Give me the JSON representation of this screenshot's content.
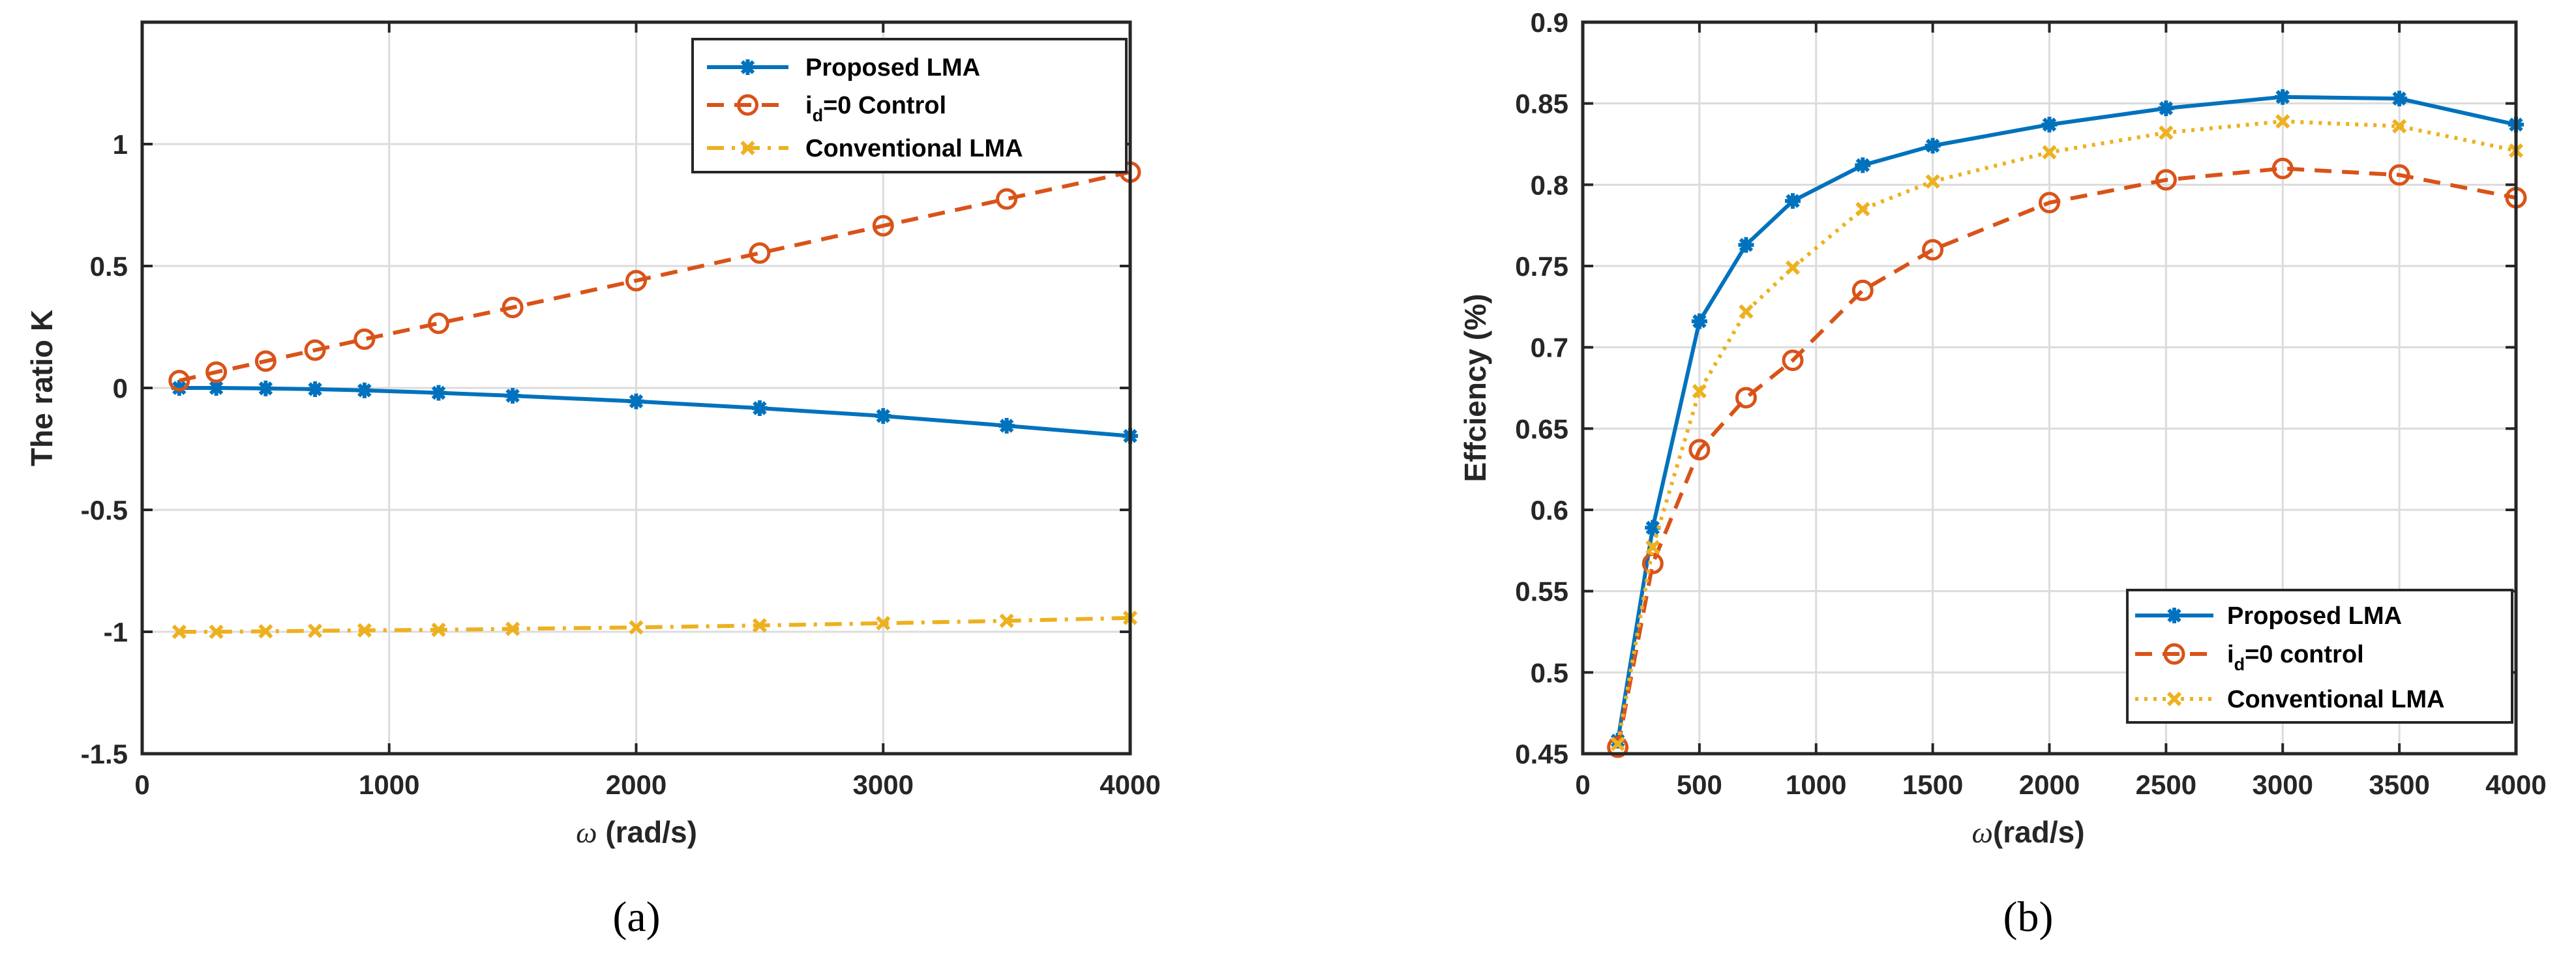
{
  "chart_data": [
    {
      "type": "line",
      "panel_label": "(a)",
      "xlabel_symbol": "ω",
      "xlabel": " (rad/s)",
      "ylabel": "The ratio K",
      "xlim": [
        0,
        4000
      ],
      "ylim": [
        -1.5,
        1.5
      ],
      "xticks": [
        0,
        1000,
        2000,
        3000,
        4000
      ],
      "yticks": [
        -1.5,
        -1,
        -0.5,
        0,
        0.5,
        1
      ],
      "xtick_labels": [
        "0",
        "1000",
        "2000",
        "3000",
        "4000"
      ],
      "ytick_labels": [
        "-1.5",
        "-1",
        "-0.5",
        "0",
        "0.5",
        "1"
      ],
      "grid": true,
      "legend_position": "top-right",
      "x": [
        150,
        300,
        500,
        700,
        900,
        1200,
        1500,
        2000,
        2500,
        3000,
        3500,
        4000
      ],
      "series": [
        {
          "name": "Proposed LMA",
          "legend": {
            "main": "Proposed LMA",
            "sub": "",
            "tail": ""
          },
          "color": "#0072BD",
          "style": "solid",
          "marker": "star",
          "values": [
            0,
            0,
            -0.002,
            -0.005,
            -0.01,
            -0.02,
            -0.032,
            -0.055,
            -0.083,
            -0.115,
            -0.155,
            -0.197
          ]
        },
        {
          "name": "id=0 Control",
          "legend": {
            "main": "i",
            "sub": "d",
            "tail": "=0 Control"
          },
          "color": "#D95319",
          "style": "dashed",
          "marker": "circle",
          "values": [
            0.03,
            0.065,
            0.11,
            0.155,
            0.2,
            0.265,
            0.33,
            0.44,
            0.553,
            0.665,
            0.775,
            0.885
          ]
        },
        {
          "name": "Conventional LMA",
          "legend": {
            "main": "Conventional LMA",
            "sub": "",
            "tail": ""
          },
          "color": "#EDB120",
          "style": "dashdot",
          "marker": "x",
          "values": [
            -1,
            -1,
            -0.998,
            -0.996,
            -0.994,
            -0.992,
            -0.988,
            -0.982,
            -0.974,
            -0.965,
            -0.955,
            -0.943
          ]
        }
      ]
    },
    {
      "type": "line",
      "panel_label": "(b)",
      "xlabel_symbol": "ω",
      "xlabel": "(rad/s)",
      "ylabel": "Effciency (%)",
      "xlim": [
        0,
        4000
      ],
      "ylim": [
        0.45,
        0.9
      ],
      "xticks": [
        0,
        500,
        1000,
        1500,
        2000,
        2500,
        3000,
        3500,
        4000
      ],
      "yticks": [
        0.45,
        0.5,
        0.55,
        0.6,
        0.65,
        0.7,
        0.75,
        0.8,
        0.85,
        0.9
      ],
      "xtick_labels": [
        "0",
        "500",
        "1000",
        "1500",
        "2000",
        "2500",
        "3000",
        "3500",
        "4000"
      ],
      "ytick_labels": [
        "0.45",
        "0.5",
        "0.55",
        "0.6",
        "0.65",
        "0.7",
        "0.75",
        "0.8",
        "0.85",
        "0.9"
      ],
      "grid": true,
      "legend_position": "bottom-right",
      "x": [
        150,
        300,
        500,
        700,
        900,
        1200,
        1500,
        2000,
        2500,
        3000,
        3500,
        4000
      ],
      "series": [
        {
          "name": "Proposed LMA",
          "legend": {
            "main": "Proposed LMA",
            "sub": "",
            "tail": ""
          },
          "color": "#0072BD",
          "style": "solid",
          "marker": "star",
          "values": [
            0.458,
            0.589,
            0.716,
            0.763,
            0.79,
            0.812,
            0.824,
            0.837,
            0.847,
            0.854,
            0.853,
            0.837
          ]
        },
        {
          "name": "id=0 control",
          "legend": {
            "main": "i",
            "sub": "d",
            "tail": "=0 control"
          },
          "color": "#D95319",
          "style": "dashed",
          "marker": "circle",
          "values": [
            0.454,
            0.567,
            0.637,
            0.669,
            0.692,
            0.735,
            0.76,
            0.789,
            0.803,
            0.81,
            0.806,
            0.792
          ]
        },
        {
          "name": "Conventional LMA",
          "legend": {
            "main": "Conventional LMA",
            "sub": "",
            "tail": ""
          },
          "color": "#EDB120",
          "style": "dotted",
          "marker": "x",
          "values": [
            0.456,
            0.577,
            0.673,
            0.722,
            0.749,
            0.785,
            0.802,
            0.82,
            0.832,
            0.839,
            0.836,
            0.821
          ]
        }
      ]
    }
  ]
}
